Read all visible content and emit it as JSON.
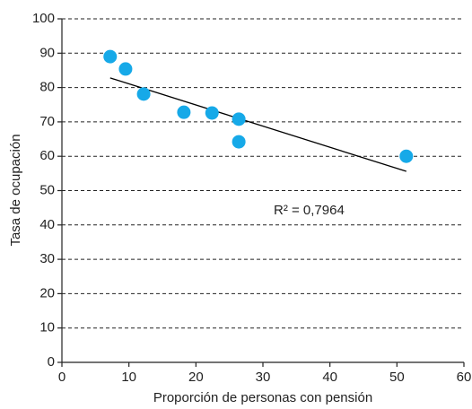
{
  "chart_data": {
    "type": "scatter",
    "x_label": "Proporción de personas con pensión",
    "y_label": "Tasa de ocupación",
    "annotation": "R² = 0,7964",
    "series": [
      {
        "color": "#16a9e8",
        "x": [
          7.2,
          9.5,
          12.2,
          18.2,
          22.4,
          26.4,
          26.4,
          51.4
        ],
        "values": [
          89.0,
          85.4,
          78.1,
          72.8,
          72.6,
          70.8,
          64.2,
          60.0
        ]
      }
    ],
    "trendline": {
      "x": [
        7.2,
        51.4
      ],
      "y": [
        82.8,
        55.6
      ],
      "color": "#000000"
    },
    "xlim": [
      0,
      60
    ],
    "xticks": [
      0,
      10,
      20,
      30,
      40,
      50,
      60
    ],
    "ylim": [
      0,
      100
    ],
    "yticks": [
      0,
      10,
      20,
      30,
      40,
      50,
      60,
      70,
      80,
      90,
      100
    ],
    "grid": true
  }
}
